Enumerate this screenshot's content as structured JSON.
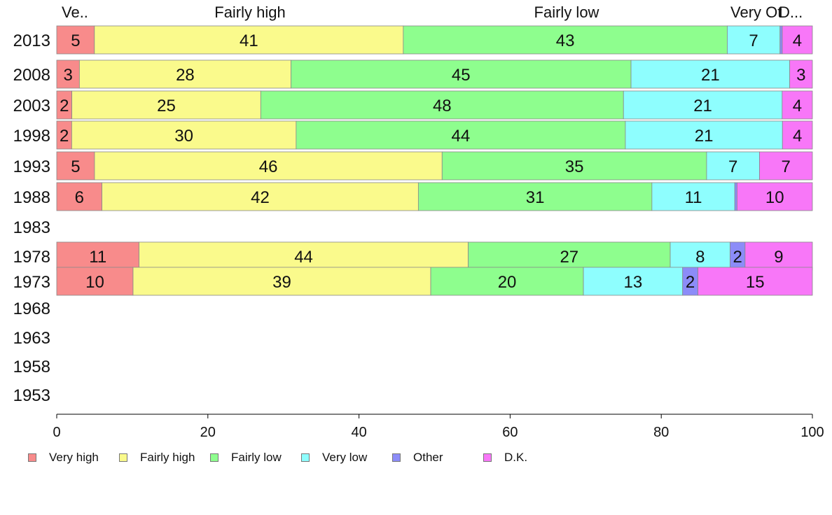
{
  "chart_data": {
    "type": "bar",
    "orientation": "horizontal",
    "stacked": true,
    "categories": [
      "2013",
      "2008",
      "2003",
      "1998",
      "1993",
      "1988",
      "1983",
      "1978",
      "1973",
      "1968",
      "1963",
      "1958",
      "1953"
    ],
    "series": [
      {
        "name": "Very high",
        "color": "#f88b8b",
        "values": [
          5,
          3,
          2,
          2,
          5,
          6,
          null,
          11,
          10,
          null,
          null,
          null,
          null
        ],
        "labels": [
          "5",
          "3",
          "2",
          "2",
          "5",
          "6",
          "",
          "11",
          "10",
          "",
          "",
          "",
          ""
        ]
      },
      {
        "name": "Fairly high",
        "color": "#fafa8c",
        "values": [
          41,
          28,
          25,
          30,
          46,
          42,
          null,
          44,
          39,
          null,
          null,
          null,
          null
        ],
        "labels": [
          "41",
          "28",
          "25",
          "30",
          "46",
          "42",
          "",
          "44",
          "39",
          "",
          "",
          "",
          ""
        ]
      },
      {
        "name": "Fairly low",
        "color": "#8efe8e",
        "values": [
          43,
          45,
          48,
          44,
          35,
          31,
          null,
          27,
          20,
          null,
          null,
          null,
          null
        ],
        "labels": [
          "43",
          "45",
          "48",
          "44",
          "35",
          "31",
          "",
          "27",
          "20",
          "",
          "",
          "",
          ""
        ]
      },
      {
        "name": "Very low",
        "color": "#8efefe",
        "values": [
          7,
          21,
          21,
          21,
          7,
          11,
          null,
          8,
          13,
          null,
          null,
          null,
          null
        ],
        "labels": [
          "7",
          "21",
          "21",
          "21",
          "7",
          "11",
          "",
          "8",
          "13",
          "",
          "",
          "",
          ""
        ]
      },
      {
        "name": "Other",
        "color": "#8c8cf8",
        "values": [
          0.3,
          0,
          0,
          0,
          0,
          0.3,
          null,
          2,
          2,
          null,
          null,
          null,
          null
        ],
        "labels": [
          "",
          "",
          "",
          "",
          "",
          "",
          "",
          "2",
          "2",
          "",
          "",
          "",
          ""
        ]
      },
      {
        "name": "D.K.",
        "color": "#f877f8",
        "values": [
          4,
          3,
          4,
          4,
          7,
          10,
          null,
          9,
          15,
          null,
          null,
          null,
          null
        ],
        "labels": [
          "4",
          "3",
          "4",
          "4",
          "7",
          "10",
          "",
          "9",
          "15",
          "",
          "",
          "",
          ""
        ]
      }
    ],
    "top_labels": [
      "Ve..",
      "Fairly high",
      "Fairly low",
      "Very Ot",
      "D..."
    ],
    "x_ticks": [
      "0",
      "20",
      "40",
      "60",
      "80",
      "100"
    ],
    "xlim": [
      0,
      100
    ],
    "legend_position": "bottom",
    "grid": false
  }
}
